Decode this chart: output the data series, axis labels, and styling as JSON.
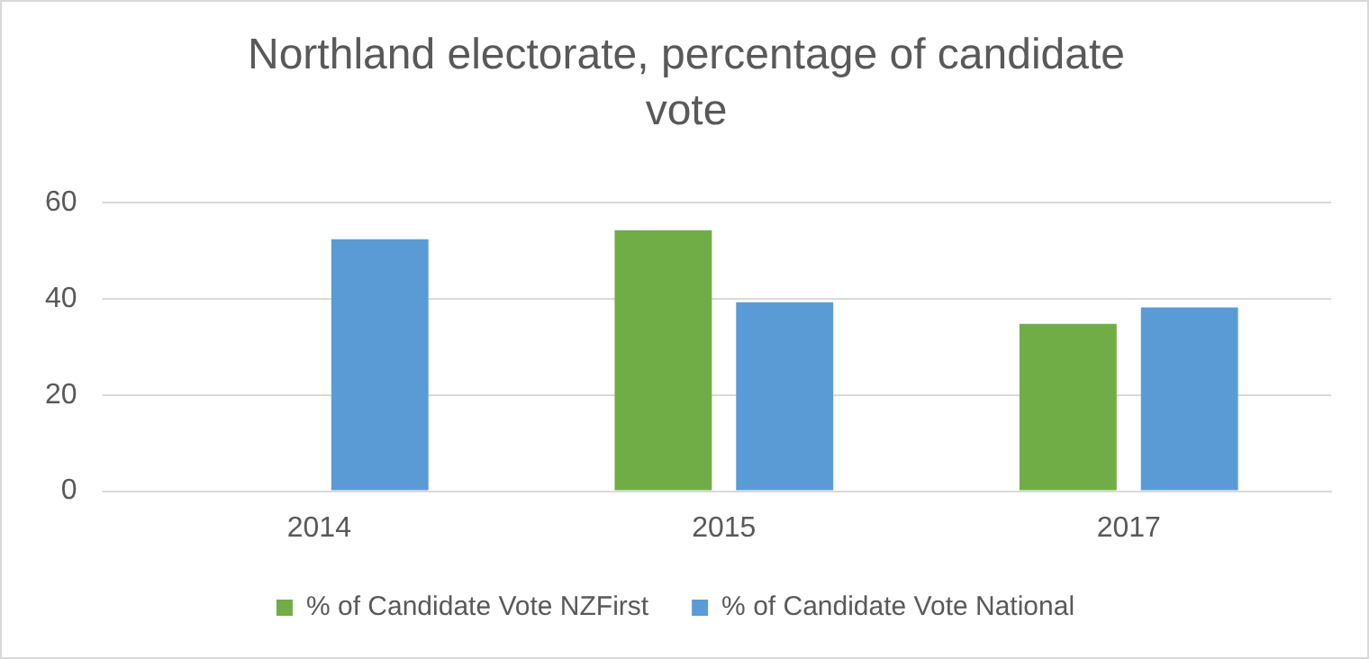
{
  "chart_data": {
    "type": "bar",
    "title": "Northland electorate, percentage of candidate vote",
    "categories": [
      "2014",
      "2015",
      "2017"
    ],
    "series": [
      {
        "name": "% of Candidate Vote NZFirst",
        "color": "#70ad47",
        "values": [
          null,
          54.3,
          34.8
        ]
      },
      {
        "name": "% of Candidate Vote National",
        "color": "#5b9bd5",
        "values": [
          52.4,
          39.3,
          38.2
        ]
      }
    ],
    "ylim": [
      0,
      60
    ],
    "yticks": [
      0,
      20,
      40,
      60
    ],
    "grid": "y",
    "legend": "bottom"
  }
}
